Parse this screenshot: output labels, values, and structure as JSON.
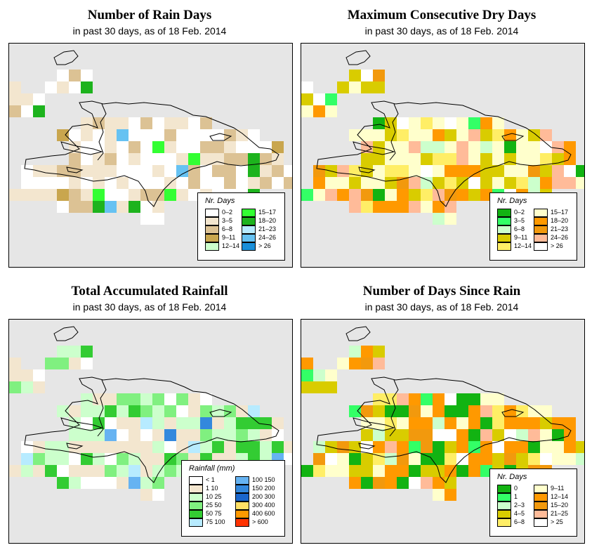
{
  "panels": [
    {
      "id": "rain-days",
      "title": "Number of Rain Days",
      "subtitle": "in past 30 days, as of  18 Feb. 2014",
      "legend": {
        "title": "Nr. Days",
        "items": [
          {
            "label": "0–2",
            "color": "#ffffff"
          },
          {
            "label": "3–5",
            "color": "#f3e6cf"
          },
          {
            "label": "6–8",
            "color": "#dcc294"
          },
          {
            "label": "9–11",
            "color": "#c9a64e"
          },
          {
            "label": "12–14",
            "color": "#ccffcc"
          },
          {
            "label": "15–17",
            "color": "#33ff33"
          },
          {
            "label": "18–20",
            "color": "#1db31d"
          },
          {
            "label": "21–23",
            "color": "#b7ebff"
          },
          {
            "label": "24–26",
            "color": "#66c2f2"
          },
          {
            "label": "> 26",
            "color": "#1a8fd9"
          }
        ]
      }
    },
    {
      "id": "max-dry-days",
      "title": "Maximum Consecutive Dry Days",
      "subtitle": "in past 30 days, as of  18 Feb. 2014",
      "legend": {
        "title": "Nr. Days",
        "items": [
          {
            "label": "0–2",
            "color": "#12b312"
          },
          {
            "label": "3–5",
            "color": "#33ff66"
          },
          {
            "label": "6–8",
            "color": "#ccffcc"
          },
          {
            "label": "9–11",
            "color": "#d9cc00"
          },
          {
            "label": "12–14",
            "color": "#ffee66"
          },
          {
            "label": "15–17",
            "color": "#ffffcc"
          },
          {
            "label": "18–20",
            "color": "#ff9900"
          },
          {
            "label": "21–23",
            "color": "#f2990d"
          },
          {
            "label": "24–26",
            "color": "#ffbb99"
          },
          {
            "label": "> 26",
            "color": "#ffffff"
          }
        ]
      }
    },
    {
      "id": "total-rainfall",
      "title": "Total Accumulated Rainfall",
      "subtitle": "in past 30 days, as of  18 Feb. 2014",
      "legend": {
        "title": "Rainfall (mm)",
        "items": [
          {
            "label": "< 1",
            "color": "#ffffff"
          },
          {
            "label": "1    10",
            "color": "#f3e6cf"
          },
          {
            "label": "10    25",
            "color": "#ccffcc"
          },
          {
            "label": "25    50",
            "color": "#80f080"
          },
          {
            "label": "50    75",
            "color": "#33cc33"
          },
          {
            "label": "75  100",
            "color": "#b7ebff"
          },
          {
            "label": "100  150",
            "color": "#66b3f2"
          },
          {
            "label": "150  200",
            "color": "#3388dd"
          },
          {
            "label": "200  300",
            "color": "#1a66cc"
          },
          {
            "label": "300  400",
            "color": "#ffe066"
          },
          {
            "label": "400  600",
            "color": "#ff9900"
          },
          {
            "label": "> 600",
            "color": "#ff3300"
          }
        ]
      }
    },
    {
      "id": "days-since-rain",
      "title": "Number of Days Since Rain",
      "subtitle": "in past 30 days, as of  18 Feb. 2014",
      "legend": {
        "title": "Nr. Days",
        "items": [
          {
            "label": "0",
            "color": "#12b312"
          },
          {
            "label": "1",
            "color": "#33ff66"
          },
          {
            "label": "2–3",
            "color": "#ccffcc"
          },
          {
            "label": "4–5",
            "color": "#d9cc00"
          },
          {
            "label": "6–8",
            "color": "#ffee66"
          },
          {
            "label": "9–11",
            "color": "#ffffcc"
          },
          {
            "label": "12–14",
            "color": "#ff9900"
          },
          {
            "label": "15–20",
            "color": "#f2990d"
          },
          {
            "label": "21–25",
            "color": "#ffbb99"
          },
          {
            "label": "> 25",
            "color": "#ffffff"
          }
        ]
      }
    }
  ]
}
